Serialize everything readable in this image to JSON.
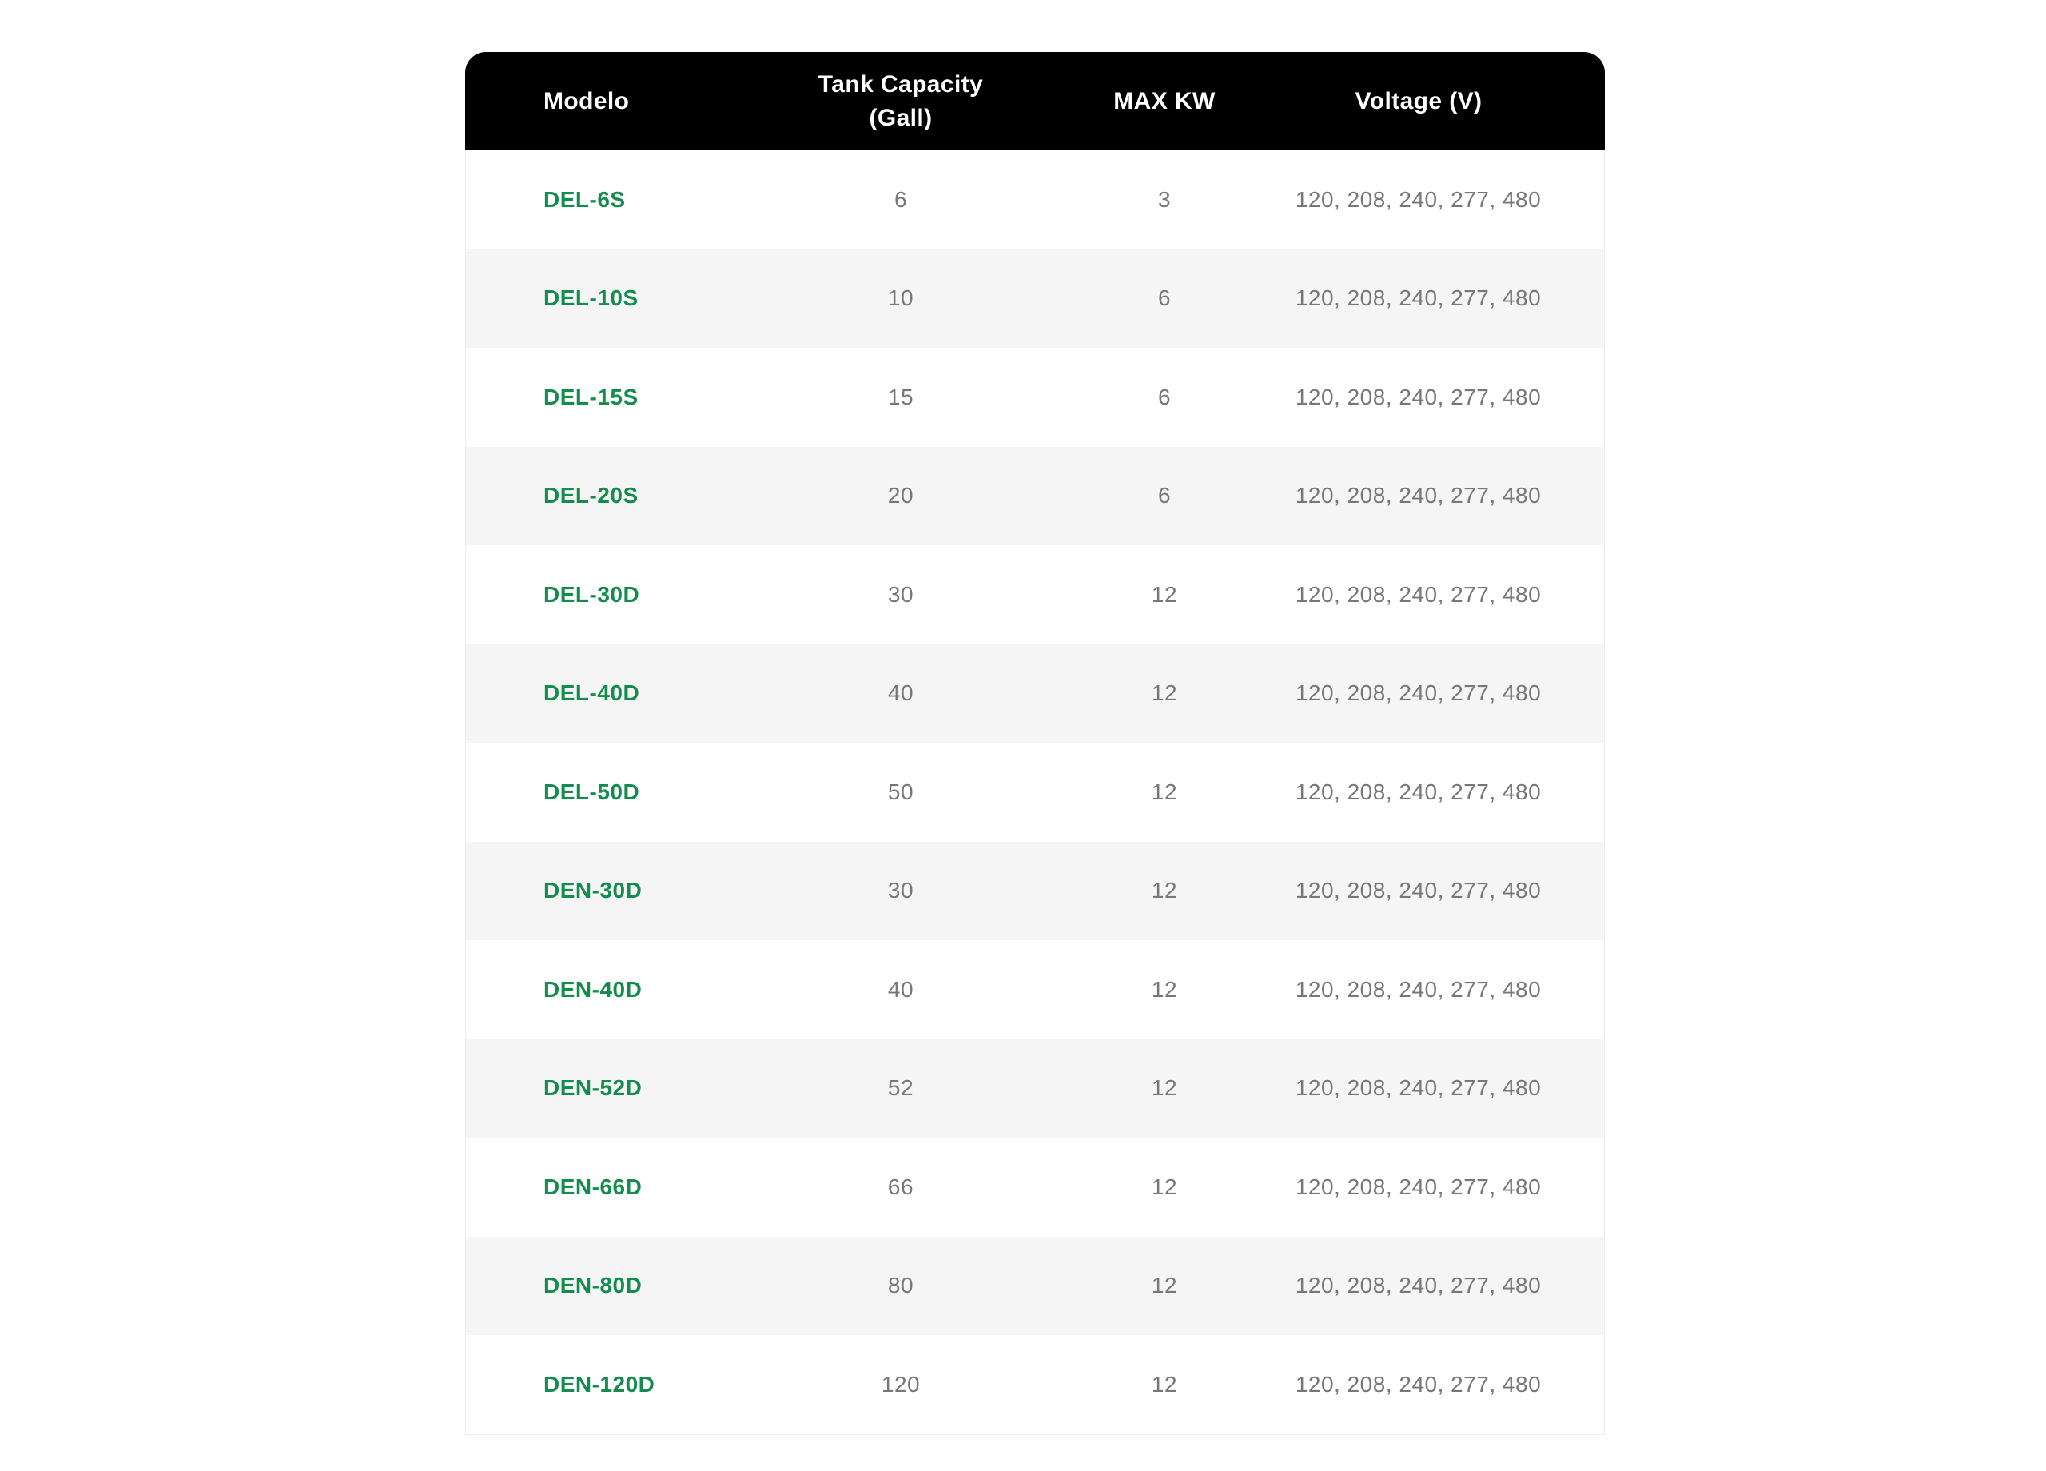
{
  "table": {
    "columns": [
      {
        "key": "model",
        "label": "Modelo"
      },
      {
        "key": "tank_capacity",
        "label": "Tank Capacity (Gall)"
      },
      {
        "key": "max_kw",
        "label": "MAX KW"
      },
      {
        "key": "voltage",
        "label": "Voltage (V)"
      }
    ],
    "rows": [
      {
        "model": "DEL-6S",
        "tank_capacity": "6",
        "max_kw": "3",
        "voltage": "120, 208, 240, 277, 480"
      },
      {
        "model": "DEL-10S",
        "tank_capacity": "10",
        "max_kw": "6",
        "voltage": "120, 208, 240, 277, 480"
      },
      {
        "model": "DEL-15S",
        "tank_capacity": "15",
        "max_kw": "6",
        "voltage": "120, 208, 240, 277, 480"
      },
      {
        "model": "DEL-20S",
        "tank_capacity": "20",
        "max_kw": "6",
        "voltage": "120, 208, 240, 277, 480"
      },
      {
        "model": "DEL-30D",
        "tank_capacity": "30",
        "max_kw": "12",
        "voltage": "120, 208, 240, 277, 480"
      },
      {
        "model": "DEL-40D",
        "tank_capacity": "40",
        "max_kw": "12",
        "voltage": "120, 208, 240, 277, 480"
      },
      {
        "model": "DEL-50D",
        "tank_capacity": "50",
        "max_kw": "12",
        "voltage": "120, 208, 240, 277, 480"
      },
      {
        "model": "DEN-30D",
        "tank_capacity": "30",
        "max_kw": "12",
        "voltage": "120, 208, 240, 277, 480"
      },
      {
        "model": "DEN-40D",
        "tank_capacity": "40",
        "max_kw": "12",
        "voltage": "120, 208, 240, 277, 480"
      },
      {
        "model": "DEN-52D",
        "tank_capacity": "52",
        "max_kw": "12",
        "voltage": "120, 208, 240, 277, 480"
      },
      {
        "model": "DEN-66D",
        "tank_capacity": "66",
        "max_kw": "12",
        "voltage": "120, 208, 240, 277, 480"
      },
      {
        "model": "DEN-80D",
        "tank_capacity": "80",
        "max_kw": "12",
        "voltage": "120, 208, 240, 277, 480"
      },
      {
        "model": "DEN-120D",
        "tank_capacity": "120",
        "max_kw": "12",
        "voltage": "120, 208, 240, 277, 480"
      }
    ]
  },
  "colors": {
    "header_bg": "#000000",
    "header_text": "#ffffff",
    "model_link_green": "#148c4e",
    "value_gray": "#77777a",
    "row_bg": "#ffffff",
    "row_alt_bg": "#f5f5f6",
    "table_border": "#ededed",
    "page_bg": "#ffffff"
  }
}
